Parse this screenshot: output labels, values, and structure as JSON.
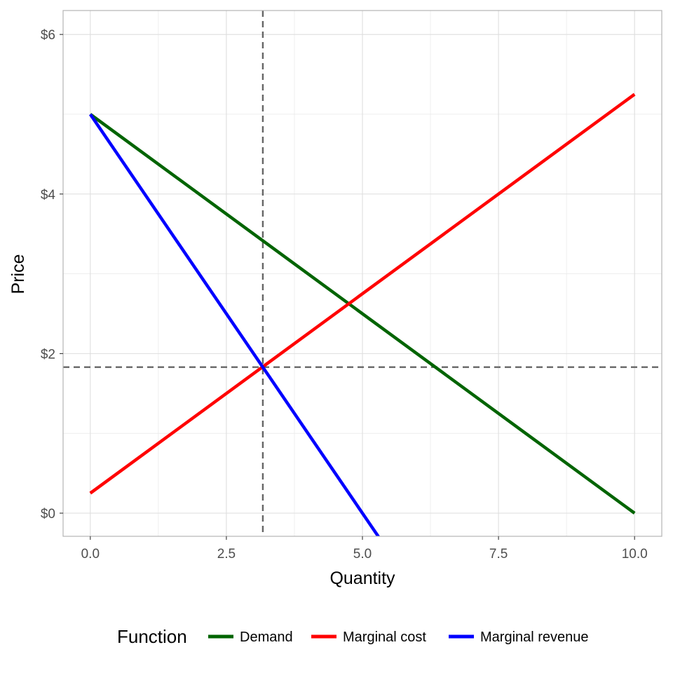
{
  "chart_data": {
    "type": "line",
    "title": "",
    "xlabel": "Quantity",
    "ylabel": "Price",
    "xlim": [
      -0.5,
      10.5
    ],
    "ylim": [
      -0.29,
      6.3
    ],
    "x_ticks": [
      0,
      2.5,
      5,
      7.5,
      10
    ],
    "x_tick_labels": [
      "0.0",
      "2.5",
      "5.0",
      "7.5",
      "10.0"
    ],
    "y_ticks": [
      0,
      2,
      4,
      6
    ],
    "y_tick_labels": [
      "$0",
      "$2",
      "$4",
      "$6"
    ],
    "grid": true,
    "legend": {
      "title": "Function",
      "position": "bottom"
    },
    "series": [
      {
        "name": "Demand",
        "color": "#006400",
        "points": [
          [
            0,
            5.0
          ],
          [
            10,
            0.0
          ]
        ]
      },
      {
        "name": "Marginal cost",
        "color": "#ff0000",
        "points": [
          [
            0,
            0.25
          ],
          [
            10,
            5.25
          ]
        ]
      },
      {
        "name": "Marginal revenue",
        "color": "#0000ff",
        "points": [
          [
            0,
            5.0
          ],
          [
            5.5,
            -0.5
          ]
        ]
      }
    ],
    "reference_lines": [
      {
        "orientation": "vertical",
        "value": 3.17,
        "style": "dashed",
        "color": "#666666"
      },
      {
        "orientation": "horizontal",
        "value": 1.83,
        "style": "dashed",
        "color": "#666666"
      }
    ]
  }
}
